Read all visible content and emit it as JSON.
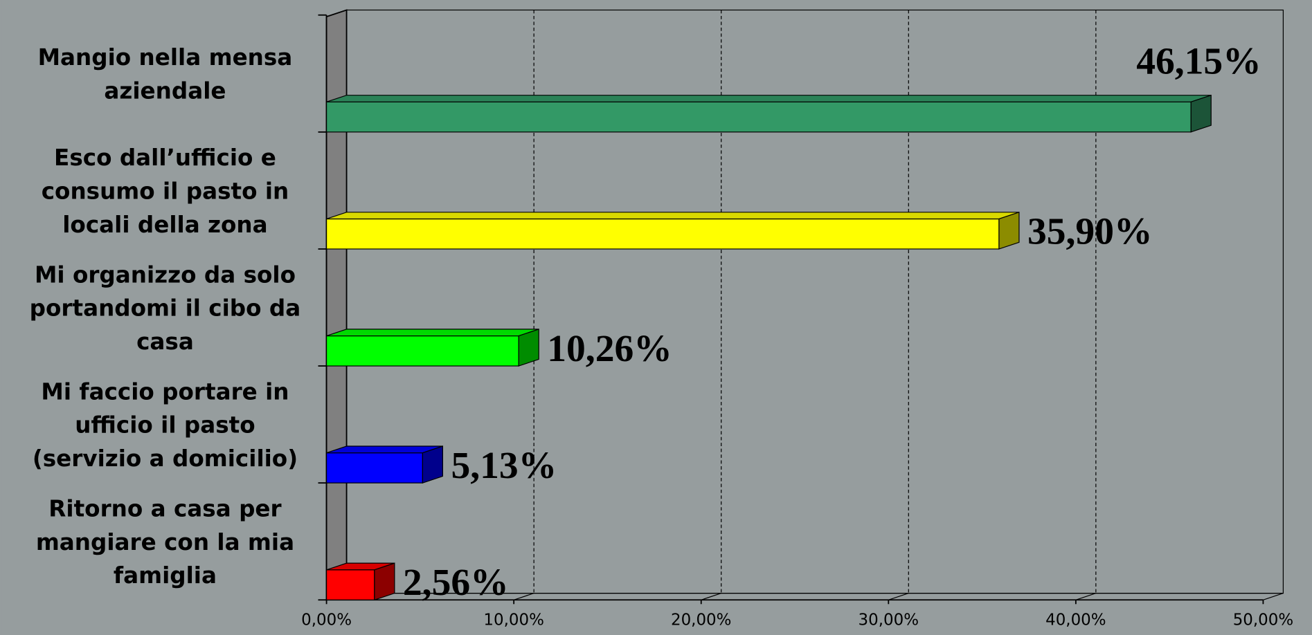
{
  "chart_data": {
    "type": "bar",
    "orientation": "horizontal",
    "three_d": true,
    "categories": [
      "Mangio nella mensa aziendale",
      "Esco dall’ufficio e consumo il pasto in locali della zona",
      "Mi organizzo da solo portandomi il cibo da casa",
      "Mi faccio portare in ufficio il pasto (servizio a domicilio)",
      "Ritorno a casa per mangiare con la mia famiglia"
    ],
    "values": [
      46.15,
      35.9,
      10.26,
      5.13,
      2.56
    ],
    "value_labels": [
      "46,15%",
      "35,90%",
      "10,26%",
      "5,13%",
      "2,56%"
    ],
    "colors": [
      "#339966",
      "#ffff00",
      "#00ff00",
      "#0000ff",
      "#ff0000"
    ],
    "xlim": [
      0,
      50
    ],
    "xticks": [
      {
        "value": 0,
        "label": "0,00%"
      },
      {
        "value": 10,
        "label": "10,00%"
      },
      {
        "value": 20,
        "label": "20,00%"
      },
      {
        "value": 30,
        "label": "30,00%"
      },
      {
        "value": 40,
        "label": "40,00%"
      },
      {
        "value": 50,
        "label": "50,00%"
      }
    ],
    "grid": true
  }
}
